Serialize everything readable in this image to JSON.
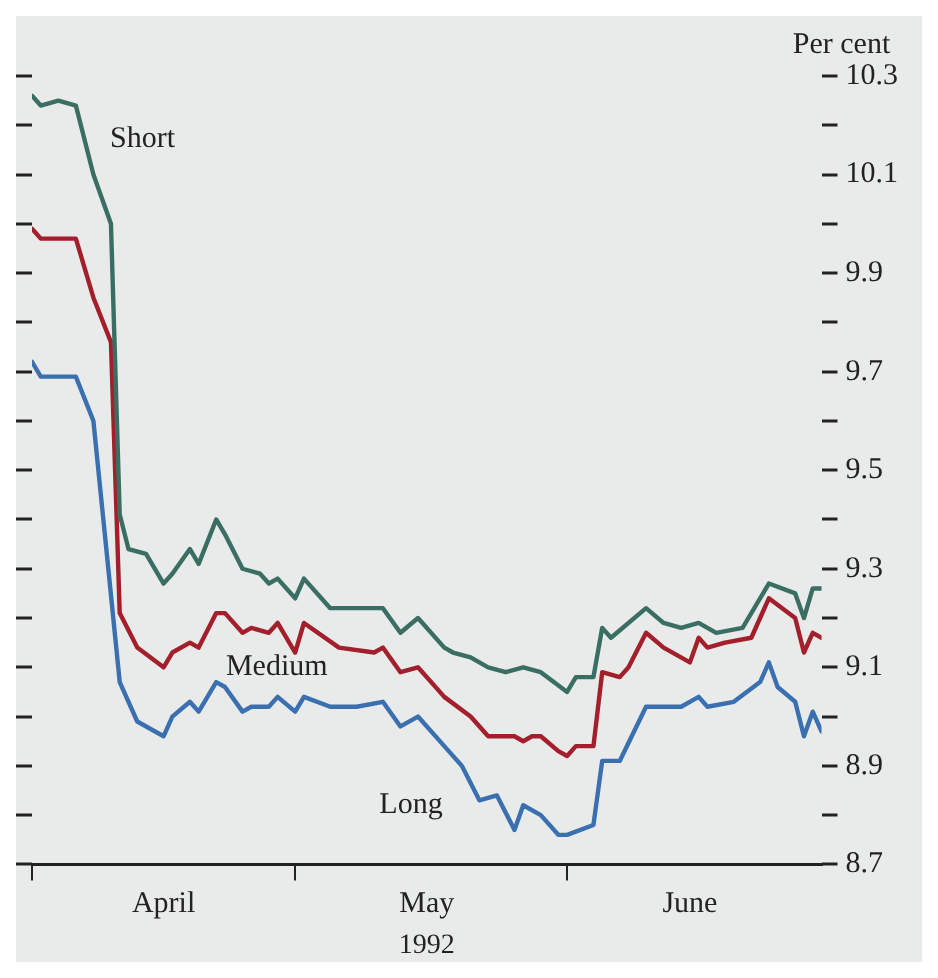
{
  "chart_data": {
    "type": "line",
    "xlabel": "1992",
    "ylabel": "Per cent",
    "xlim": [
      "1992-04-01",
      "1992-06-30"
    ],
    "xticks": [
      {
        "value": "1992-04-01",
        "label": null
      },
      {
        "value": "1992-04-16",
        "label": "April"
      },
      {
        "value": "1992-05-01",
        "label": null
      },
      {
        "value": "1992-05-16",
        "label": "May"
      },
      {
        "value": "1992-06-01",
        "label": null
      },
      {
        "value": "1992-06-15",
        "label": "June"
      }
    ],
    "ylim": [
      8.7,
      10.3
    ],
    "yticks": [
      8.7,
      {
        "value": 8.8,
        "label": null
      },
      8.9,
      {
        "value": 9.0,
        "label": null
      },
      9.1,
      {
        "value": 9.2,
        "label": null
      },
      9.3,
      {
        "value": 9.4,
        "label": null
      },
      9.5,
      {
        "value": 9.6,
        "label": null
      },
      9.7,
      {
        "value": 9.8,
        "label": null
      },
      9.9,
      {
        "value": 10.0,
        "label": null
      },
      10.1,
      {
        "value": 10.2,
        "label": null
      },
      10.3
    ],
    "line_style": "solid",
    "marker": "none",
    "series": [
      {
        "name": "Short",
        "color": "#3b6e63",
        "x": [
          "1992-04-01",
          "1992-04-02",
          "1992-04-04",
          "1992-04-06",
          "1992-04-08",
          "1992-04-10",
          "1992-04-11",
          "1992-04-12",
          "1992-04-14",
          "1992-04-16",
          "1992-04-17",
          "1992-04-19",
          "1992-04-20",
          "1992-04-22",
          "1992-04-23",
          "1992-04-25",
          "1992-04-27",
          "1992-04-28",
          "1992-04-29",
          "1992-05-01",
          "1992-05-02",
          "1992-05-05",
          "1992-05-11",
          "1992-05-13",
          "1992-05-15",
          "1992-05-18",
          "1992-05-19",
          "1992-05-21",
          "1992-05-23",
          "1992-05-25",
          "1992-05-27",
          "1992-05-29",
          "1992-06-01",
          "1992-06-02",
          "1992-06-04",
          "1992-06-05",
          "1992-06-06",
          "1992-06-10",
          "1992-06-12",
          "1992-06-14",
          "1992-06-16",
          "1992-06-18",
          "1992-06-21",
          "1992-06-24",
          "1992-06-27",
          "1992-06-28",
          "1992-06-29",
          "1992-06-30"
        ],
        "values": [
          10.26,
          10.24,
          10.25,
          10.24,
          10.1,
          10.0,
          9.41,
          9.34,
          9.33,
          9.27,
          9.29,
          9.34,
          9.31,
          9.4,
          9.37,
          9.3,
          9.29,
          9.27,
          9.28,
          9.24,
          9.28,
          9.22,
          9.22,
          9.17,
          9.2,
          9.14,
          9.13,
          9.12,
          9.1,
          9.09,
          9.1,
          9.09,
          9.05,
          9.08,
          9.08,
          9.18,
          9.16,
          9.22,
          9.19,
          9.18,
          9.19,
          9.17,
          9.18,
          9.27,
          9.25,
          9.2,
          9.26,
          9.26
        ]
      },
      {
        "name": "Medium",
        "color": "#a31f2b",
        "x": [
          "1992-04-01",
          "1992-04-02",
          "1992-04-06",
          "1992-04-08",
          "1992-04-10",
          "1992-04-11",
          "1992-04-13",
          "1992-04-16",
          "1992-04-17",
          "1992-04-19",
          "1992-04-20",
          "1992-04-22",
          "1992-04-23",
          "1992-04-25",
          "1992-04-26",
          "1992-04-28",
          "1992-04-29",
          "1992-05-01",
          "1992-05-02",
          "1992-05-06",
          "1992-05-10",
          "1992-05-11",
          "1992-05-13",
          "1992-05-15",
          "1992-05-18",
          "1992-05-21",
          "1992-05-23",
          "1992-05-24",
          "1992-05-26",
          "1992-05-27",
          "1992-05-28",
          "1992-05-29",
          "1992-05-31",
          "1992-06-01",
          "1992-06-02",
          "1992-06-04",
          "1992-06-05",
          "1992-06-07",
          "1992-06-08",
          "1992-06-10",
          "1992-06-12",
          "1992-06-15",
          "1992-06-16",
          "1992-06-17",
          "1992-06-19",
          "1992-06-22",
          "1992-06-24",
          "1992-06-27",
          "1992-06-28",
          "1992-06-29",
          "1992-06-30"
        ],
        "values": [
          9.99,
          9.97,
          9.97,
          9.85,
          9.76,
          9.21,
          9.14,
          9.1,
          9.13,
          9.15,
          9.14,
          9.21,
          9.21,
          9.17,
          9.18,
          9.17,
          9.19,
          9.13,
          9.19,
          9.14,
          9.13,
          9.14,
          9.09,
          9.1,
          9.04,
          9.0,
          8.96,
          8.96,
          8.96,
          8.95,
          8.96,
          8.96,
          8.93,
          8.92,
          8.94,
          8.94,
          9.09,
          9.08,
          9.1,
          9.17,
          9.14,
          9.11,
          9.16,
          9.14,
          9.15,
          9.16,
          9.24,
          9.2,
          9.13,
          9.17,
          9.16
        ]
      },
      {
        "name": "Long",
        "color": "#3a6fb0",
        "x": [
          "1992-04-01",
          "1992-04-02",
          "1992-04-06",
          "1992-04-08",
          "1992-04-11",
          "1992-04-13",
          "1992-04-16",
          "1992-04-17",
          "1992-04-19",
          "1992-04-20",
          "1992-04-22",
          "1992-04-23",
          "1992-04-25",
          "1992-04-26",
          "1992-04-28",
          "1992-04-29",
          "1992-05-01",
          "1992-05-02",
          "1992-05-05",
          "1992-05-08",
          "1992-05-11",
          "1992-05-13",
          "1992-05-15",
          "1992-05-18",
          "1992-05-20",
          "1992-05-22",
          "1992-05-24",
          "1992-05-26",
          "1992-05-27",
          "1992-05-29",
          "1992-05-31",
          "1992-06-01",
          "1992-06-04",
          "1992-06-05",
          "1992-06-07",
          "1992-06-10",
          "1992-06-14",
          "1992-06-16",
          "1992-06-17",
          "1992-06-20",
          "1992-06-23",
          "1992-06-24",
          "1992-06-25",
          "1992-06-27",
          "1992-06-28",
          "1992-06-29",
          "1992-06-30"
        ],
        "values": [
          9.72,
          9.69,
          9.69,
          9.6,
          9.07,
          8.99,
          8.96,
          9.0,
          9.03,
          9.01,
          9.07,
          9.06,
          9.01,
          9.02,
          9.02,
          9.04,
          9.01,
          9.04,
          9.02,
          9.02,
          9.03,
          8.98,
          9.0,
          8.94,
          8.9,
          8.83,
          8.84,
          8.77,
          8.82,
          8.8,
          8.76,
          8.76,
          8.78,
          8.91,
          8.91,
          9.02,
          9.02,
          9.04,
          9.02,
          9.03,
          9.07,
          9.11,
          9.06,
          9.03,
          8.96,
          9.01,
          8.97
        ]
      }
    ]
  }
}
